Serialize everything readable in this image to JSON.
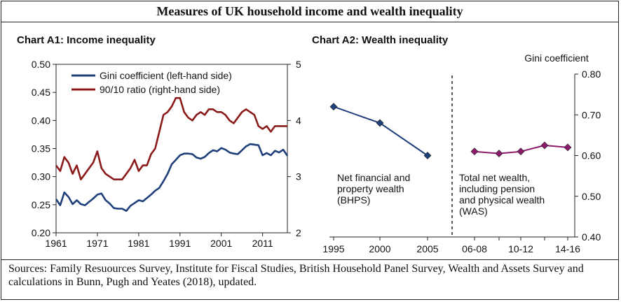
{
  "figure_title": "Measures of UK household income and wealth inequality",
  "sources": "Sources: Family Resuources Survey, Institute for Fiscal Studies, British Household Panel Survey, Wealth and Assets Survey and calculations in Bunn, Pugh and Yeates (2018), updated.",
  "colors": {
    "gini_line": "#1f3f7a",
    "ratio_line": "#8b1a1a",
    "bhps_line": "#1f3f7a",
    "was_line": "#8b1a6b"
  },
  "chart_data": [
    {
      "type": "line",
      "title": "Chart A1:  Income inequality",
      "x_ticks": [
        "1961",
        "1971",
        "1981",
        "1991",
        "2001",
        "2011"
      ],
      "xlim": [
        1961,
        2017
      ],
      "y_left": {
        "lim": [
          0.2,
          0.5
        ],
        "ticks": [
          "0.20",
          "0.25",
          "0.30",
          "0.35",
          "0.40",
          "0.45",
          "0.50"
        ]
      },
      "y_right": {
        "lim": [
          2,
          5
        ],
        "ticks": [
          "2",
          "3",
          "4",
          "5"
        ]
      },
      "legend_position": "top-left",
      "series": [
        {
          "name": "Gini coefficient (left-hand side)",
          "axis": "left",
          "x": [
            1961,
            1962,
            1963,
            1964,
            1965,
            1966,
            1967,
            1968,
            1969,
            1970,
            1971,
            1972,
            1973,
            1974,
            1975,
            1976,
            1977,
            1978,
            1979,
            1980,
            1981,
            1982,
            1983,
            1984,
            1985,
            1986,
            1987,
            1988,
            1989,
            1990,
            1991,
            1992,
            1993,
            1994,
            1995,
            1996,
            1997,
            1998,
            1999,
            2000,
            2001,
            2002,
            2003,
            2004,
            2005,
            2006,
            2007,
            2008,
            2009,
            2010,
            2011,
            2012,
            2013,
            2014,
            2015,
            2016,
            2017
          ],
          "values": [
            0.26,
            0.249,
            0.272,
            0.264,
            0.251,
            0.258,
            0.251,
            0.249,
            0.255,
            0.261,
            0.268,
            0.27,
            0.258,
            0.252,
            0.244,
            0.243,
            0.243,
            0.239,
            0.248,
            0.253,
            0.258,
            0.256,
            0.262,
            0.268,
            0.275,
            0.28,
            0.292,
            0.305,
            0.322,
            0.33,
            0.338,
            0.341,
            0.341,
            0.34,
            0.334,
            0.332,
            0.335,
            0.342,
            0.347,
            0.345,
            0.351,
            0.348,
            0.343,
            0.341,
            0.34,
            0.347,
            0.354,
            0.358,
            0.357,
            0.356,
            0.338,
            0.342,
            0.338,
            0.346,
            0.343,
            0.348,
            0.337
          ]
        },
        {
          "name": "90/10 ratio (right-hand side)",
          "axis": "right",
          "x": [
            1961,
            1962,
            1963,
            1964,
            1965,
            1966,
            1967,
            1968,
            1969,
            1970,
            1971,
            1972,
            1973,
            1974,
            1975,
            1976,
            1977,
            1978,
            1979,
            1980,
            1981,
            1982,
            1983,
            1984,
            1985,
            1986,
            1987,
            1988,
            1989,
            1990,
            1991,
            1992,
            1993,
            1994,
            1995,
            1996,
            1997,
            1998,
            1999,
            2000,
            2001,
            2002,
            2003,
            2004,
            2005,
            2006,
            2007,
            2008,
            2009,
            2010,
            2011,
            2012,
            2013,
            2014,
            2015,
            2016,
            2017
          ],
          "values": [
            3.2,
            3.1,
            3.35,
            3.25,
            3.05,
            3.2,
            2.95,
            3.05,
            3.15,
            3.25,
            3.45,
            3.15,
            3.05,
            3.0,
            2.95,
            2.95,
            2.95,
            3.05,
            3.15,
            3.3,
            3.1,
            3.2,
            3.2,
            3.4,
            3.5,
            3.8,
            4.1,
            4.15,
            4.25,
            4.4,
            4.4,
            4.15,
            4.05,
            4.0,
            4.1,
            4.15,
            4.1,
            4.2,
            4.2,
            4.15,
            4.15,
            4.1,
            4.0,
            3.95,
            4.05,
            4.15,
            4.2,
            4.15,
            4.1,
            3.9,
            3.85,
            3.9,
            3.8,
            3.9,
            3.9,
            3.9,
            3.9
          ]
        }
      ]
    },
    {
      "type": "line",
      "title": "Chart A2:  Wealth inequality",
      "ylabel": "Gini coefficient",
      "ylim": [
        0.4,
        0.8
      ],
      "y_ticks": [
        "0.40",
        "0.50",
        "0.60",
        "0.70",
        "0.80"
      ],
      "segments": [
        {
          "categories": [
            "1995",
            "2000",
            "2005"
          ],
          "values": [
            0.72,
            0.68,
            0.6
          ],
          "annotation": [
            "Net financial and",
            "property wealth",
            "(BHPS)"
          ]
        },
        {
          "categories": [
            "06-08",
            "",
            "10-12",
            "",
            "14-16"
          ],
          "values": [
            0.61,
            0.605,
            0.61,
            0.625,
            0.62
          ],
          "annotation": [
            "Total net wealth,",
            "including pension",
            "and physical wealth",
            "(WAS)"
          ]
        }
      ]
    }
  ]
}
